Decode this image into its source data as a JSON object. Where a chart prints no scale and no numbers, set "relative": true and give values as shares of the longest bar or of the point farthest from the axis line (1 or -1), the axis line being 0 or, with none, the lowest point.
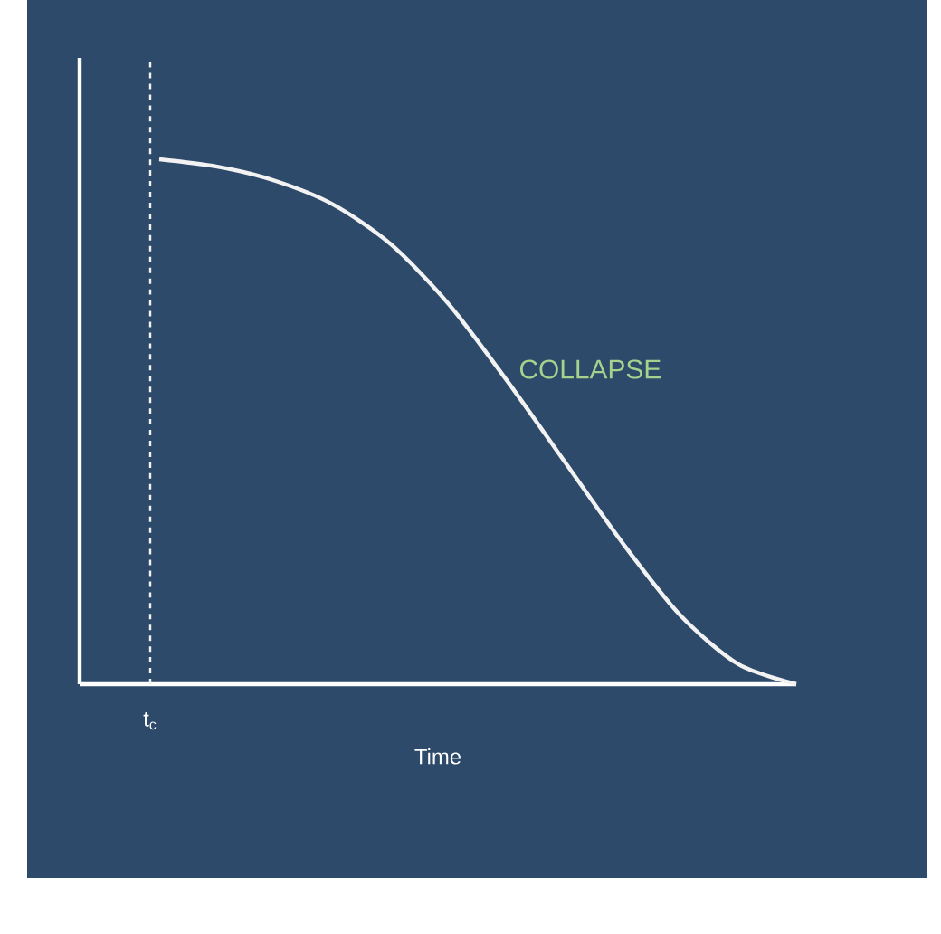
{
  "chart_data": {
    "type": "line",
    "relative": true,
    "xlabel": "Time",
    "categories": [
      null,
      null,
      null,
      null,
      null,
      null,
      null,
      null,
      null,
      null,
      null,
      null
    ],
    "series": [
      {
        "color": "#f2f2f2",
        "values": [
          1,
          0.986,
          0.959,
          0.914,
          0.838,
          0.724,
          0.579,
          0.424,
          0.269,
          0.131,
          0.038,
          0
        ]
      }
    ],
    "annotations": [
      "COLLAPSE",
      "t$_{c}$"
    ]
  }
}
